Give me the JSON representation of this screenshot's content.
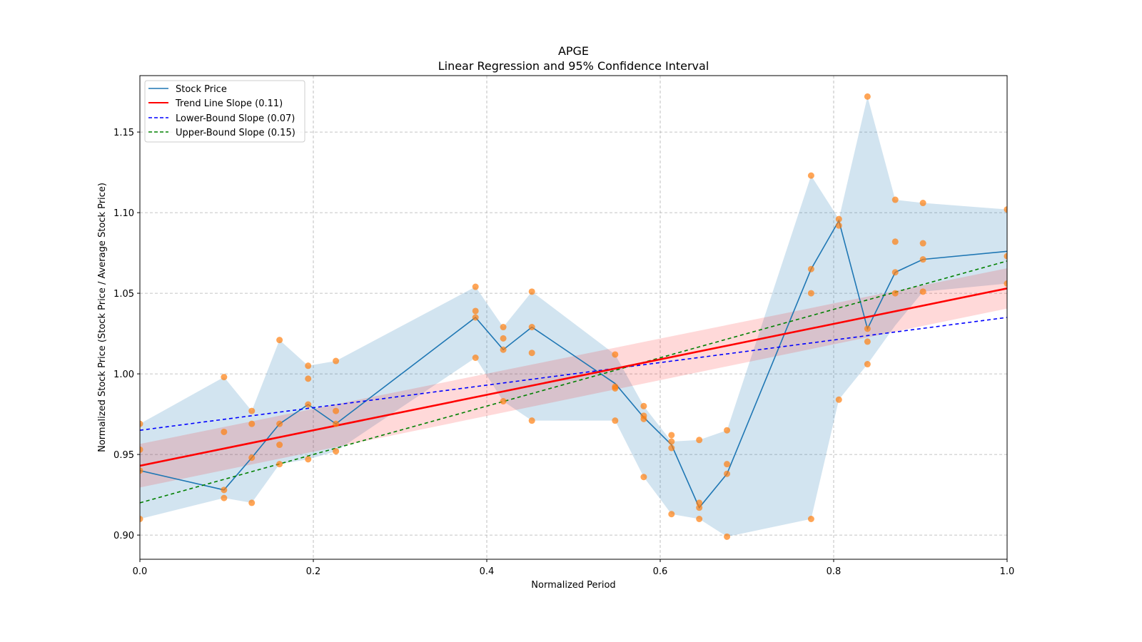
{
  "chart_data": {
    "type": "line",
    "title": "APGE",
    "subtitle": "Linear Regression and 95% Confidence Interval",
    "xlabel": "Normalized Period",
    "ylabel": "Normalized Stock Price (Stock Price / Average Stock Price)",
    "xlim": [
      0.0,
      1.0
    ],
    "ylim": [
      0.885,
      1.185
    ],
    "xticks": [
      0.0,
      0.2,
      0.4,
      0.6,
      0.8,
      1.0
    ],
    "xtick_labels": [
      "0.0",
      "0.2",
      "0.4",
      "0.6",
      "0.8",
      "1.0"
    ],
    "yticks": [
      0.9,
      0.95,
      1.0,
      1.05,
      1.1,
      1.15
    ],
    "ytick_labels": [
      "0.90",
      "0.95",
      "1.00",
      "1.05",
      "1.10",
      "1.15"
    ],
    "grid": true,
    "legend_position": "top-left",
    "legend": [
      {
        "label": "Stock Price",
        "color": "#1f77b4",
        "style": "solid"
      },
      {
        "label": "Trend Line Slope (0.11)",
        "color": "#ff0000",
        "style": "solid"
      },
      {
        "label": "Lower-Bound Slope (0.07)",
        "color": "#0000ff",
        "style": "dashed"
      },
      {
        "label": "Upper-Bound Slope (0.15)",
        "color": "#008000",
        "style": "dashed"
      }
    ],
    "stock_price": {
      "name": "Stock Price",
      "color": "#1f77b4",
      "x": [
        0.0,
        0.097,
        0.129,
        0.161,
        0.194,
        0.226,
        0.387,
        0.419,
        0.452,
        0.548,
        0.581,
        0.613,
        0.645,
        0.677,
        0.774,
        0.806,
        0.839,
        0.871,
        0.903,
        1.0
      ],
      "y": [
        0.94,
        0.928,
        0.948,
        0.969,
        0.981,
        0.969,
        1.035,
        1.015,
        1.029,
        0.994,
        0.973,
        0.956,
        0.917,
        0.938,
        1.065,
        1.095,
        1.028,
        1.063,
        1.071,
        1.076
      ]
    },
    "band_upper": [
      0.969,
      0.998,
      0.977,
      1.021,
      1.005,
      1.008,
      1.054,
      1.029,
      1.051,
      1.012,
      0.98,
      0.958,
      0.959,
      0.965,
      1.123,
      1.096,
      1.172,
      1.108,
      1.106,
      1.102
    ],
    "band_lower": [
      0.91,
      0.923,
      0.92,
      0.944,
      0.947,
      0.952,
      1.01,
      0.983,
      0.971,
      0.971,
      0.936,
      0.913,
      0.91,
      0.899,
      0.91,
      0.984,
      1.006,
      1.03,
      1.051,
      1.056
    ],
    "scatter": {
      "name": "Observations",
      "color": "#ff7f0e",
      "points": [
        [
          0.0,
          0.969
        ],
        [
          0.0,
          0.953
        ],
        [
          0.0,
          0.94
        ],
        [
          0.0,
          0.91
        ],
        [
          0.097,
          0.998
        ],
        [
          0.097,
          0.964
        ],
        [
          0.097,
          0.928
        ],
        [
          0.097,
          0.923
        ],
        [
          0.129,
          0.977
        ],
        [
          0.129,
          0.969
        ],
        [
          0.129,
          0.948
        ],
        [
          0.129,
          0.92
        ],
        [
          0.161,
          1.021
        ],
        [
          0.161,
          0.969
        ],
        [
          0.161,
          0.956
        ],
        [
          0.161,
          0.944
        ],
        [
          0.194,
          1.005
        ],
        [
          0.194,
          0.997
        ],
        [
          0.194,
          0.981
        ],
        [
          0.194,
          0.947
        ],
        [
          0.226,
          1.008
        ],
        [
          0.226,
          0.977
        ],
        [
          0.226,
          0.969
        ],
        [
          0.226,
          0.952
        ],
        [
          0.387,
          1.054
        ],
        [
          0.387,
          1.039
        ],
        [
          0.387,
          1.035
        ],
        [
          0.387,
          1.01
        ],
        [
          0.419,
          1.029
        ],
        [
          0.419,
          1.022
        ],
        [
          0.419,
          1.015
        ],
        [
          0.419,
          0.983
        ],
        [
          0.452,
          1.051
        ],
        [
          0.452,
          1.029
        ],
        [
          0.452,
          1.013
        ],
        [
          0.452,
          0.971
        ],
        [
          0.548,
          1.012
        ],
        [
          0.548,
          0.992
        ],
        [
          0.548,
          0.991
        ],
        [
          0.548,
          0.971
        ],
        [
          0.581,
          0.98
        ],
        [
          0.581,
          0.974
        ],
        [
          0.581,
          0.972
        ],
        [
          0.581,
          0.936
        ],
        [
          0.613,
          0.962
        ],
        [
          0.613,
          0.958
        ],
        [
          0.613,
          0.954
        ],
        [
          0.613,
          0.913
        ],
        [
          0.645,
          0.959
        ],
        [
          0.645,
          0.92
        ],
        [
          0.645,
          0.917
        ],
        [
          0.645,
          0.91
        ],
        [
          0.677,
          0.965
        ],
        [
          0.677,
          0.944
        ],
        [
          0.677,
          0.938
        ],
        [
          0.677,
          0.899
        ],
        [
          0.774,
          1.123
        ],
        [
          0.774,
          1.065
        ],
        [
          0.774,
          1.05
        ],
        [
          0.774,
          0.91
        ],
        [
          0.806,
          1.096
        ],
        [
          0.806,
          1.092
        ],
        [
          0.806,
          0.984
        ],
        [
          0.839,
          1.172
        ],
        [
          0.839,
          1.028
        ],
        [
          0.839,
          1.02
        ],
        [
          0.839,
          1.006
        ],
        [
          0.871,
          1.108
        ],
        [
          0.871,
          1.082
        ],
        [
          0.871,
          1.063
        ],
        [
          0.871,
          1.05
        ],
        [
          0.903,
          1.106
        ],
        [
          0.903,
          1.081
        ],
        [
          0.903,
          1.071
        ],
        [
          0.903,
          1.051
        ],
        [
          1.0,
          1.102
        ],
        [
          1.0,
          1.073
        ],
        [
          1.0,
          1.056
        ]
      ]
    },
    "trend_line": {
      "name": "Trend Line Slope (0.11)",
      "color": "#ff0000",
      "slope": 0.11,
      "intercept": 0.943,
      "ci_halfwidth_start": 0.0135,
      "ci_halfwidth_end": 0.0125
    },
    "lower_bound": {
      "name": "Lower-Bound Slope (0.07)",
      "color": "#0000ff",
      "slope": 0.07,
      "intercept": 0.965
    },
    "upper_bound": {
      "name": "Upper-Bound Slope (0.15)",
      "color": "#008000",
      "slope": 0.15,
      "intercept": 0.92
    }
  }
}
